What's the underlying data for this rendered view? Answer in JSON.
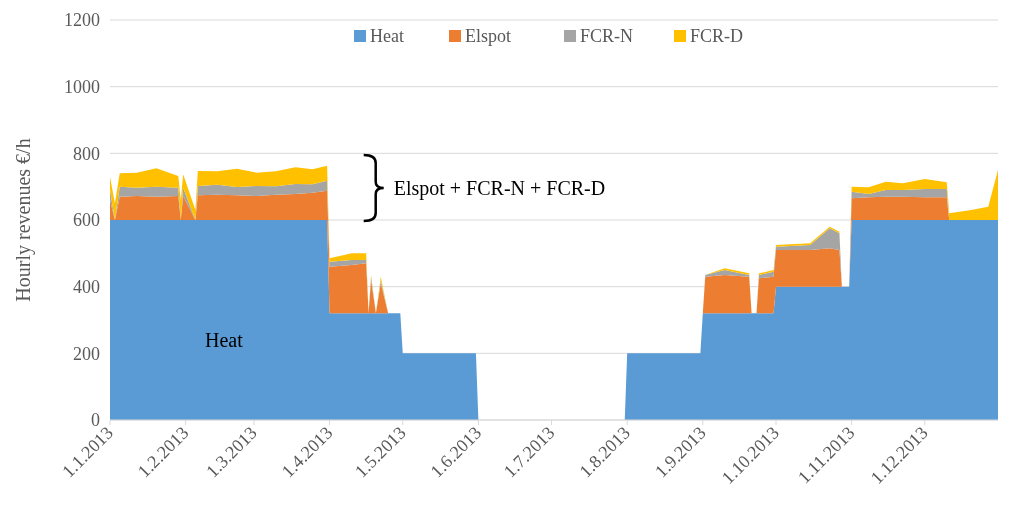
{
  "chart_data": {
    "type": "area",
    "stacked": true,
    "ylabel": "Hourly revenues €/h",
    "legend": "top",
    "grid": "y",
    "x": [
      "2013-01-01",
      "2013-01-03",
      "2013-01-05",
      "2013-01-12",
      "2013-01-20",
      "2013-01-29",
      "2013-01-30",
      "2013-01-31",
      "2013-02-05",
      "2013-02-06",
      "2013-02-14",
      "2013-02-22",
      "2013-03-02",
      "2013-03-10",
      "2013-03-18",
      "2013-03-25",
      "2013-03-31",
      "2013-04-01",
      "2013-04-10",
      "2013-04-16",
      "2013-04-17",
      "2013-04-18",
      "2013-04-20",
      "2013-04-22",
      "2013-04-25",
      "2013-04-30",
      "2013-05-01",
      "2013-05-31",
      "2013-06-01",
      "2013-07-31",
      "2013-08-01",
      "2013-08-31",
      "2013-09-01",
      "2013-09-02",
      "2013-09-10",
      "2013-09-20",
      "2013-09-21",
      "2013-09-23",
      "2013-09-24",
      "2013-09-30",
      "2013-10-01",
      "2013-10-15",
      "2013-10-23",
      "2013-10-27",
      "2013-10-28",
      "2013-10-31",
      "2013-11-01",
      "2013-11-08",
      "2013-11-15",
      "2013-11-22",
      "2013-12-01",
      "2013-12-10",
      "2013-12-11",
      "2013-12-20",
      "2013-12-27",
      "2013-12-31"
    ],
    "series": [
      {
        "name": "Heat",
        "color": "#5b9bd5",
        "values": [
          600,
          600,
          600,
          600,
          600,
          600,
          600,
          600,
          600,
          600,
          600,
          600,
          600,
          600,
          600,
          600,
          600,
          320,
          320,
          320,
          320,
          320,
          320,
          320,
          320,
          320,
          200,
          200,
          0,
          0,
          200,
          200,
          320,
          320,
          320,
          320,
          320,
          320,
          320,
          320,
          400,
          400,
          400,
          400,
          400,
          400,
          600,
          600,
          600,
          600,
          600,
          600,
          600,
          600,
          600,
          600
        ]
      },
      {
        "name": "Elspot",
        "color": "#ed7d31",
        "values": [
          60,
          0,
          70,
          72,
          70,
          72,
          0,
          72,
          0,
          74,
          76,
          74,
          72,
          76,
          78,
          82,
          88,
          140,
          145,
          150,
          0,
          100,
          0,
          90,
          0,
          0,
          0,
          0,
          0,
          0,
          0,
          0,
          0,
          110,
          115,
          110,
          0,
          0,
          105,
          110,
          110,
          110,
          115,
          110,
          0,
          0,
          65,
          68,
          70,
          70,
          68,
          68,
          0,
          0,
          0,
          0
        ]
      },
      {
        "name": "FCR-N",
        "color": "#a5a5a5",
        "values": [
          30,
          0,
          30,
          25,
          30,
          25,
          0,
          25,
          0,
          28,
          30,
          25,
          30,
          25,
          30,
          25,
          30,
          15,
          15,
          10,
          0,
          10,
          0,
          10,
          0,
          0,
          0,
          0,
          0,
          0,
          0,
          0,
          0,
          5,
          15,
          5,
          0,
          0,
          10,
          15,
          10,
          15,
          60,
          50,
          0,
          0,
          20,
          10,
          20,
          20,
          25,
          25,
          0,
          0,
          0,
          0
        ]
      },
      {
        "name": "FCR-D",
        "color": "#ffc000",
        "values": [
          40,
          50,
          40,
          45,
          55,
          35,
          60,
          40,
          30,
          45,
          40,
          55,
          40,
          45,
          50,
          45,
          45,
          10,
          20,
          20,
          0,
          5,
          0,
          10,
          0,
          0,
          0,
          0,
          0,
          0,
          0,
          0,
          0,
          0,
          5,
          5,
          0,
          0,
          5,
          5,
          5,
          5,
          5,
          5,
          0,
          0,
          15,
          20,
          25,
          20,
          30,
          20,
          20,
          30,
          40,
          150
        ]
      }
    ],
    "xlim": [
      "2013-01-01",
      "2013-12-31"
    ],
    "xticks": [
      {
        "value": "2013-01-01",
        "label": "1.1.2013"
      },
      {
        "value": "2013-02-01",
        "label": "1.2.2013"
      },
      {
        "value": "2013-03-01",
        "label": "1.3.2013"
      },
      {
        "value": "2013-04-01",
        "label": "1.4.2013"
      },
      {
        "value": "2013-05-01",
        "label": "1.5.2013"
      },
      {
        "value": "2013-06-01",
        "label": "1.6.2013"
      },
      {
        "value": "2013-07-01",
        "label": "1.7.2013"
      },
      {
        "value": "2013-08-01",
        "label": "1.8.2013"
      },
      {
        "value": "2013-09-01",
        "label": "1.9.2013"
      },
      {
        "value": "2013-10-01",
        "label": "1.10.2013"
      },
      {
        "value": "2013-11-01",
        "label": "1.11.2013"
      },
      {
        "value": "2013-12-01",
        "label": "1.12.2013"
      }
    ],
    "ylim": [
      0,
      1200
    ],
    "yticks": [
      0,
      200,
      400,
      600,
      800,
      1000,
      1200
    ],
    "annotations": [
      "Heat",
      "Elspot + FCR-N + FCR-D"
    ]
  }
}
